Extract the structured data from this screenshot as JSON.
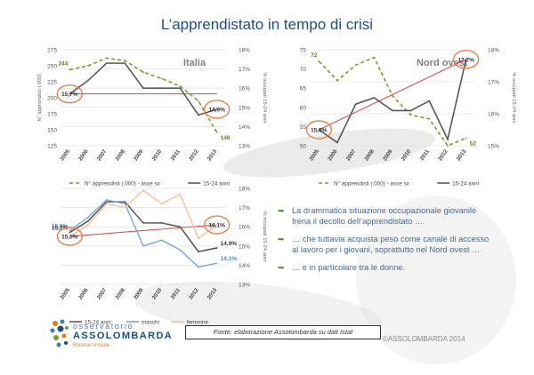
{
  "page": {
    "title": "L’apprendistato in tempo di crisi"
  },
  "colors": {
    "dashed": "#7a9a2e",
    "gray": "#595959",
    "blue": "#7aa6d6",
    "peach": "#f5c09a",
    "trend": "#e04040",
    "circle": "#e8804a",
    "title": "#1f4e79"
  },
  "chart_data": [
    {
      "type": "line",
      "id": "italia",
      "title": "Italia",
      "x": [
        "2005",
        "2006",
        "2007",
        "2008",
        "2009",
        "2010",
        "2011",
        "2012",
        "2013"
      ],
      "ylim_left": [
        125,
        275
      ],
      "yticks_left": [
        "125",
        "150",
        "175",
        "200",
        "225",
        "250",
        "275"
      ],
      "ylabel_left": "N° apprendisti (.000)",
      "ylim_right": [
        13,
        18
      ],
      "yticks_right": [
        "13%",
        "14%",
        "15%",
        "16%",
        "17%",
        "18%"
      ],
      "ylabel_right": "% occupati 15-24 anni",
      "series": [
        {
          "name": "N° apprendisti (.000) - asse sx",
          "axis": "left",
          "style": "dashed",
          "values": [
            244,
            250,
            262,
            258,
            240,
            230,
            218,
            195,
            146
          ]
        },
        {
          "name": "15-24 anni",
          "axis": "right",
          "style": "solid",
          "values": [
            15.7,
            16.4,
            17.3,
            17.3,
            16.0,
            16.0,
            16.0,
            14.6,
            14.9
          ]
        }
      ],
      "annotations": [
        {
          "text": "244",
          "series": 0,
          "index": 0
        },
        {
          "text": "146",
          "series": 0,
          "index": 8
        },
        {
          "text": "15,7%",
          "series": 1,
          "index": 0,
          "circled": true
        },
        {
          "text": "14,9%",
          "series": 1,
          "index": 8,
          "circled": true
        }
      ],
      "trendline": {
        "from_value": 15.7,
        "to_value": 15.7
      },
      "legend": [
        "N° apprendisti (.000) - asse sx",
        "15-24 anni"
      ]
    },
    {
      "type": "line",
      "id": "nord-ovest",
      "title": "Nord ovest",
      "x": [
        "2005",
        "2006",
        "2007",
        "2008",
        "2009",
        "2010",
        "2011",
        "2012",
        "2013"
      ],
      "ylim_left": [
        50,
        75
      ],
      "yticks_left": [
        "50",
        "55",
        "60",
        "65",
        "70",
        "75"
      ],
      "ylabel_left": "",
      "ylim_right": [
        15,
        18
      ],
      "yticks_right": [
        "15%",
        "16%",
        "17%",
        "18%"
      ],
      "ylabel_right": "% occupati 15-24 anni",
      "series": [
        {
          "name": "N° apprendisti (.000) - asse sx",
          "axis": "left",
          "style": "dashed",
          "values": [
            72,
            67,
            71,
            73,
            63,
            58,
            57,
            50,
            52
          ]
        },
        {
          "name": "15-24 anni",
          "axis": "right",
          "style": "solid",
          "values": [
            15.5,
            15.1,
            16.3,
            16.5,
            16.1,
            16.1,
            16.4,
            15.2,
            17.7
          ]
        }
      ],
      "annotations": [
        {
          "text": "72",
          "series": 0,
          "index": 0
        },
        {
          "text": "52",
          "series": 0,
          "index": 8
        },
        {
          "text": "15,5%",
          "series": 1,
          "index": 0,
          "circled": true
        },
        {
          "text": "17,7%",
          "series": 1,
          "index": 8,
          "circled": true
        }
      ],
      "trendline": {
        "from_value": 15.5,
        "to_value": 17.7
      },
      "legend": [
        "N° apprendisti (.000) - asse sx",
        "15-24 anni"
      ]
    },
    {
      "type": "line",
      "id": "genere",
      "title": "",
      "x": [
        "2005",
        "2006",
        "2007",
        "2008",
        "2009",
        "2010",
        "2011",
        "2012",
        "2013"
      ],
      "ylim_right": [
        13,
        18
      ],
      "yticks_right": [
        "13%",
        "14%",
        "15%",
        "16%",
        "17%",
        "18%"
      ],
      "ylabel_right": "% occupati 15-24 anni",
      "series": [
        {
          "name": "15-24 anni",
          "axis": "right",
          "style": "solid",
          "values": [
            15.7,
            16.3,
            17.3,
            17.3,
            16.2,
            16.2,
            16.0,
            14.7,
            14.9
          ]
        },
        {
          "name": "maschi",
          "axis": "right",
          "style": "solid",
          "values": [
            15.8,
            16.5,
            17.4,
            17.2,
            15.0,
            15.3,
            14.8,
            13.9,
            14.1
          ]
        },
        {
          "name": "femmine",
          "axis": "right",
          "style": "solid",
          "values": [
            15.5,
            16.1,
            17.2,
            17.0,
            17.9,
            17.2,
            17.7,
            15.4,
            16.1
          ]
        }
      ],
      "annotations": [
        {
          "text": "15,8%",
          "series": 1,
          "index": 0
        },
        {
          "text": "15,7%",
          "series": 0,
          "index": 0
        },
        {
          "text": "15,5%",
          "series": 2,
          "index": 0,
          "circled": true
        },
        {
          "text": "16,1%",
          "series": 2,
          "index": 8,
          "circled": true
        },
        {
          "text": "14,9%",
          "series": 0,
          "index": 8
        },
        {
          "text": "14,1%",
          "series": 1,
          "index": 8
        }
      ],
      "trendline": {
        "from_value": 15.5,
        "to_value": 16.1
      },
      "legend": [
        "15-24 anni",
        "maschi",
        "femmine"
      ]
    }
  ],
  "bullets": [
    "La drammatica situazione occupazionale giovanile frena il decollo dell’apprendistato …",
    "… che tuttavia acquista peso come canale di accesso al lavoro per i giovani, soprattutto nel Nord ovest …",
    "… e in particolare tra le donne."
  ],
  "footer": {
    "source": "Fonte: elaborazione Assolombarda su dati Istat",
    "copyright": "©ASSOLOMBARDA 2014",
    "logo_line1": "osservatorio",
    "logo_line2": "ASSOLOMBARDA",
    "logo_line3": "Risorse Umane"
  }
}
